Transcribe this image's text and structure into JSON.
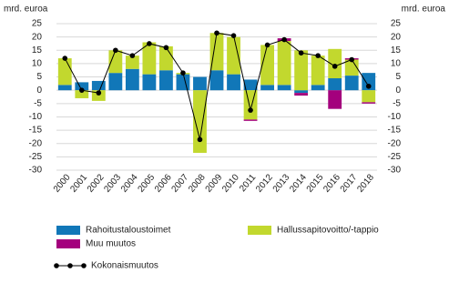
{
  "chart_data": {
    "type": "bar",
    "stacked": true,
    "y_label": "mrd. euroa",
    "y2_label": "mrd. euroa",
    "categories": [
      "2000",
      "2001",
      "2002",
      "2003",
      "2004",
      "2005",
      "2006",
      "2007",
      "2008",
      "2009",
      "2010",
      "2011",
      "2012",
      "2013",
      "2014",
      "2015",
      "2016",
      "2017",
      "2018"
    ],
    "series": [
      {
        "name": "Rahoitustaloustoimet",
        "color": "#1177b8",
        "values": [
          2,
          3,
          3.5,
          6.5,
          8,
          6,
          7.5,
          6,
          5,
          7.5,
          6,
          4,
          2,
          2,
          -1,
          2,
          4.5,
          5.5,
          6.5
        ]
      },
      {
        "name": "Hallussapitovoitto/-tappio",
        "color": "#c2d82e",
        "values": [
          10,
          -3,
          -4,
          8.5,
          5,
          12,
          9,
          0.5,
          -23.5,
          14,
          14,
          -11,
          15,
          16.5,
          15,
          11,
          11,
          6,
          -4.5
        ]
      },
      {
        "name": "Muu muutos",
        "color": "#a4007d",
        "values": [
          0,
          0,
          0,
          0,
          0,
          0,
          0,
          0,
          0,
          0,
          0,
          -0.5,
          0,
          1,
          -1,
          0,
          -7,
          0.5,
          -0.5
        ]
      },
      {
        "name": "Kokonaismuutos",
        "type": "line",
        "color": "#000000",
        "values": [
          12,
          0,
          -1,
          15,
          13,
          17.5,
          16,
          6.5,
          -18.5,
          21.5,
          20.5,
          -7.5,
          17,
          19,
          14,
          13,
          9,
          11.5,
          1.5
        ]
      }
    ],
    "ylim": [
      -30,
      25
    ],
    "yticks": [
      -30,
      -25,
      -20,
      -15,
      -10,
      -5,
      0,
      5,
      10,
      15,
      20,
      25
    ],
    "y2lim": [
      -30,
      25
    ],
    "y2ticks": [
      -30,
      -25,
      -20,
      -15,
      -10,
      -5,
      0,
      5,
      10,
      15,
      20,
      25
    ],
    "grid": true
  }
}
